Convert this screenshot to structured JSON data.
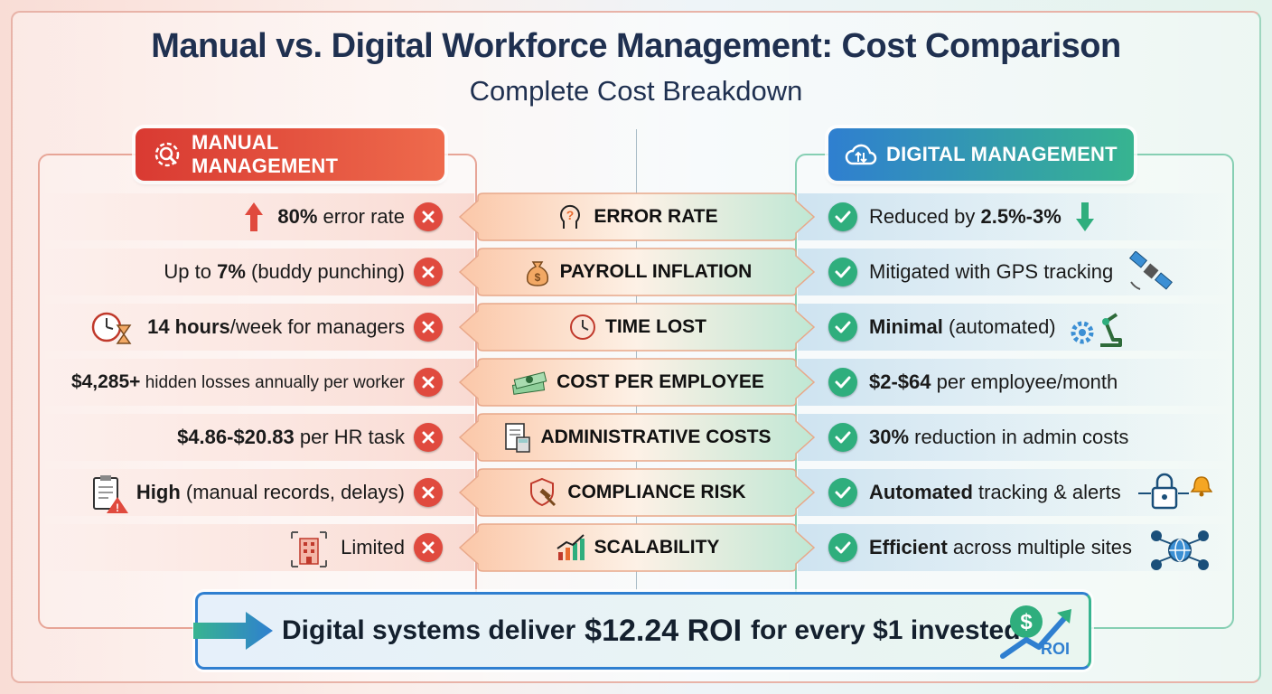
{
  "title": "Manual vs. Digital Workforce Management: Cost Comparison",
  "subtitle": "Complete Cost Breakdown",
  "colors": {
    "manual": "#e04a3e",
    "digital": "#2fae7d",
    "navy": "#1f3050"
  },
  "manual_header": {
    "label": "MANUAL MANAGEMENT",
    "icon": "gear-search-icon"
  },
  "digital_header": {
    "label": "DIGITAL MANAGEMENT",
    "icon": "cloud-sync-icon"
  },
  "rows": [
    {
      "category": "ERROR RATE",
      "cat_icon": "head-question-icon",
      "manual_bold": "80%",
      "manual_rest": " error rate",
      "digital_pre": "Reduced by ",
      "digital_bold": "2.5%-3%",
      "digital_rest": ""
    },
    {
      "category": "PAYROLL INFLATION",
      "cat_icon": "money-bag-icon",
      "manual_pre": "Up to ",
      "manual_bold": "7%",
      "manual_rest": " (buddy punching)",
      "digital_pre": "Mitigated with GPS tracking",
      "digital_bold": "",
      "digital_rest": ""
    },
    {
      "category": "TIME LOST",
      "cat_icon": "clock-icon",
      "manual_bold": "14 hours",
      "manual_rest": "/week for managers",
      "digital_pre": "",
      "digital_bold": "Minimal",
      "digital_rest": " (automated)"
    },
    {
      "category": "COST PER EMPLOYEE",
      "cat_icon": "cash-stack-icon",
      "manual_bold": "$4,285+",
      "manual_rest": " hidden losses annually per worker",
      "digital_pre": "",
      "digital_bold": "$2-$64",
      "digital_rest": " per employee/month"
    },
    {
      "category": "ADMINISTRATIVE COSTS",
      "cat_icon": "document-calculator-icon",
      "manual_bold": "$4.86-$20.83",
      "manual_rest": " per HR task",
      "digital_pre": "",
      "digital_bold": "30%",
      "digital_rest": " reduction in admin costs"
    },
    {
      "category": "COMPLIANCE RISK",
      "cat_icon": "shield-gavel-icon",
      "manual_bold": "High",
      "manual_rest": " (manual records, delays)",
      "digital_pre": "",
      "digital_bold": "Automated",
      "digital_rest": " tracking & alerts"
    },
    {
      "category": "SCALABILITY",
      "cat_icon": "growth-chart-icon",
      "manual_bold": "",
      "manual_rest": "Limited",
      "digital_pre": "",
      "digital_bold": "Efficient",
      "digital_rest": " across multiple sites"
    }
  ],
  "roi": {
    "pre": "Digital systems deliver ",
    "bold": "$12.24 ROI",
    "post": " for every $1 invested",
    "badge": "ROI"
  }
}
